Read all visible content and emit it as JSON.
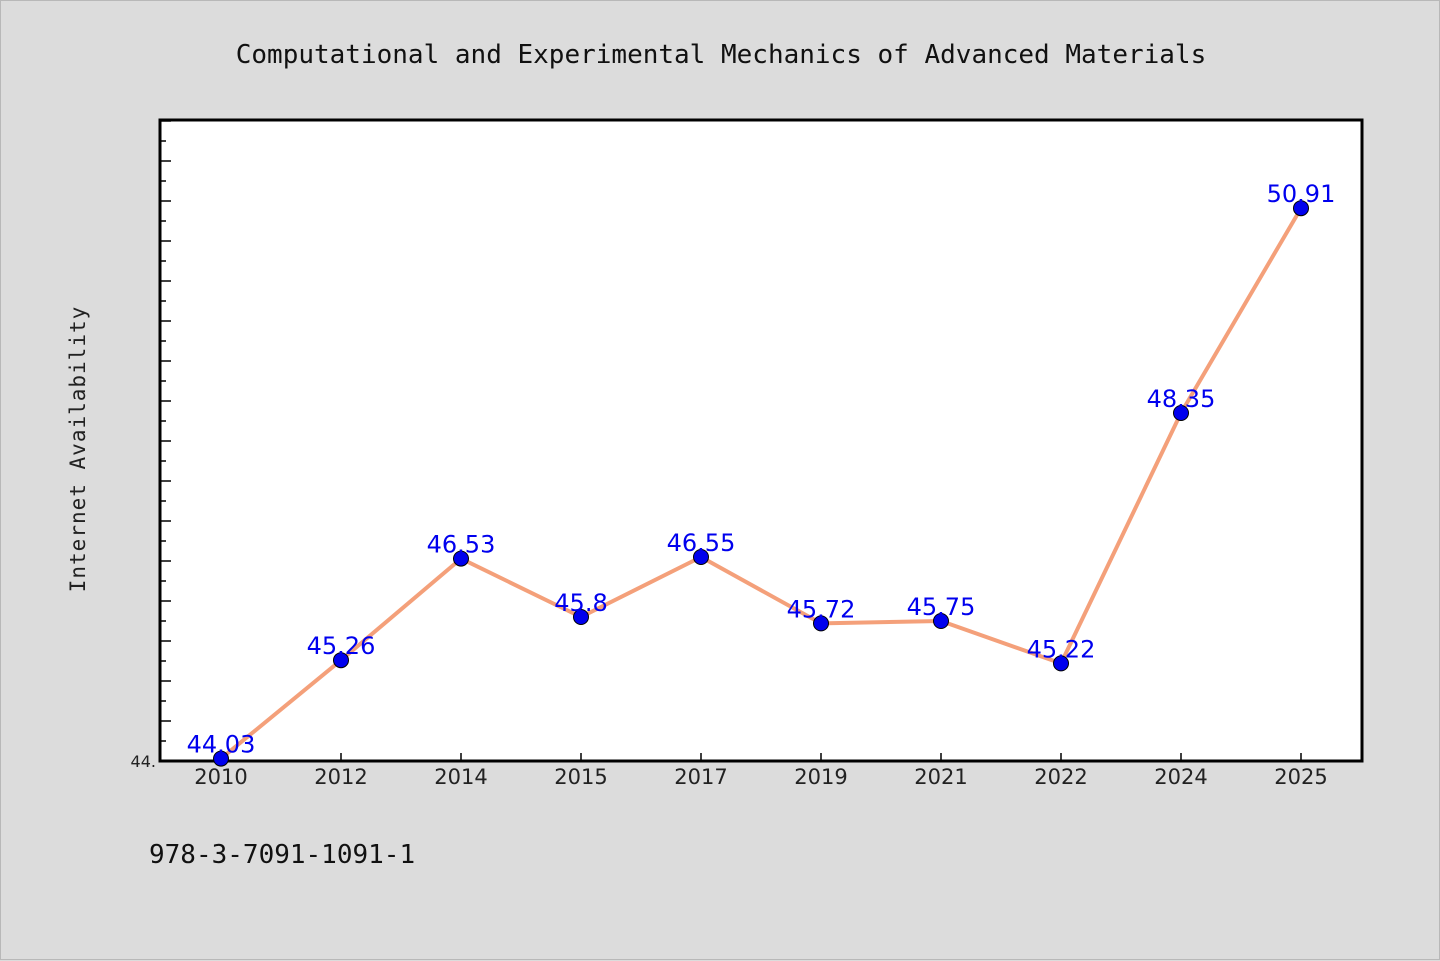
{
  "chart_data": {
    "type": "line",
    "title": "Computational and Experimental Mechanics of Advanced Materials",
    "xlabel": "",
    "ylabel": "Internet Availability",
    "categories": [
      "2010",
      "2012",
      "2014",
      "2015",
      "2017",
      "2019",
      "2021",
      "2022",
      "2024",
      "2025"
    ],
    "series": [
      {
        "values": [
          44.03,
          45.26,
          46.53,
          45.8,
          46.55,
          45.72,
          45.75,
          45.22,
          48.35,
          50.91
        ],
        "data_labels": [
          "44.03",
          "45.26",
          "46.53",
          "45.8",
          "46.55",
          "45.72",
          "45.75",
          "45.22",
          "48.35",
          "50.91"
        ],
        "line_color": "#f4a07a",
        "marker_color": "#0000ee"
      }
    ],
    "ytick_label": "44.",
    "ylim": [
      44.0,
      52.0
    ],
    "grid": false,
    "legend": "none",
    "label_color": "#0000ee",
    "background_color": "#dcdcdc",
    "plot_background": "#ffffff"
  },
  "footnote": "978-3-7091-1091-1"
}
